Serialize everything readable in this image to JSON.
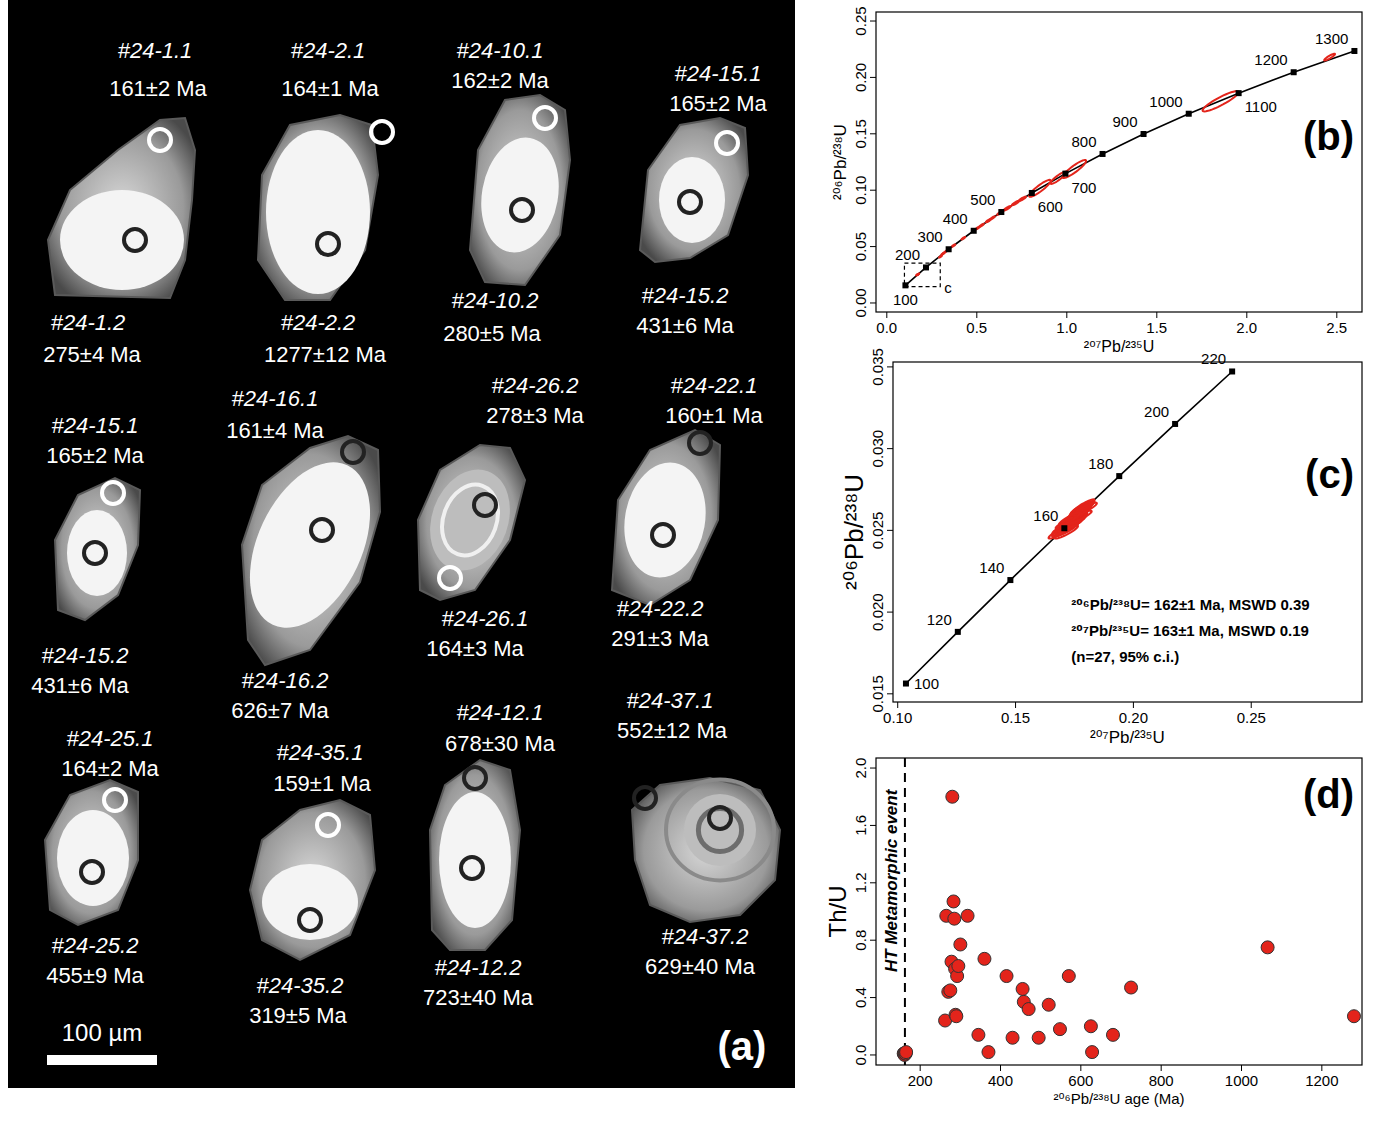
{
  "panel_a": {
    "label": "(a)",
    "scale_bar": "100 µm",
    "grains": [
      {
        "spots": [
          {
            "id": "#24-1.1",
            "age": "161±2 Ma",
            "color": "#ffffff"
          },
          {
            "id": "#24-1.2",
            "age": "275±4 Ma",
            "color": "#222222"
          }
        ]
      },
      {
        "spots": [
          {
            "id": "#24-2.1",
            "age": "164±1 Ma",
            "color": "#ffffff"
          },
          {
            "id": "#24-2.2",
            "age": "1277±12 Ma",
            "color": "#222222"
          }
        ]
      },
      {
        "spots": [
          {
            "id": "#24-10.1",
            "age": "162±2 Ma",
            "color": "#ffffff"
          },
          {
            "id": "#24-10.2",
            "age": "280±5 Ma",
            "color": "#222222"
          }
        ]
      },
      {
        "spots": [
          {
            "id": "#24-15.1",
            "age": "165±2 Ma",
            "color": "#ffffff"
          },
          {
            "id": "#24-15.2",
            "age": "431±6 Ma",
            "color": "#222222"
          }
        ]
      },
      {
        "spots": [
          {
            "id": "#24-15.1",
            "age": "165±2 Ma",
            "color": "#ffffff"
          },
          {
            "id": "#24-15.2",
            "age": "431±6 Ma",
            "color": "#222222"
          }
        ]
      },
      {
        "spots": [
          {
            "id": "#24-16.1",
            "age": "161±4 Ma",
            "color": "#222222"
          },
          {
            "id": "#24-16.2",
            "age": "626±7 Ma",
            "color": "#222222"
          }
        ]
      },
      {
        "spots": [
          {
            "id": "#24-26.2",
            "age": "278±3 Ma",
            "color": "#222222"
          },
          {
            "id": "#24-26.1",
            "age": "164±3 Ma",
            "color": "#ffffff"
          }
        ]
      },
      {
        "spots": [
          {
            "id": "#24-22.1",
            "age": "160±1 Ma",
            "color": "#222222"
          },
          {
            "id": "#24-22.2",
            "age": "291±3 Ma",
            "color": "#222222"
          }
        ]
      },
      {
        "spots": [
          {
            "id": "#24-25.1",
            "age": "164±2 Ma",
            "color": "#ffffff"
          },
          {
            "id": "#24-25.2",
            "age": "455±9 Ma",
            "color": "#222222"
          }
        ]
      },
      {
        "spots": [
          {
            "id": "#24-35.1",
            "age": "159±1 Ma",
            "color": "#ffffff"
          },
          {
            "id": "#24-35.2",
            "age": "319±5 Ma",
            "color": "#222222"
          }
        ]
      },
      {
        "spots": [
          {
            "id": "#24-12.1",
            "age": "678±30 Ma",
            "color": "#222222"
          },
          {
            "id": "#24-12.2",
            "age": "723±40 Ma",
            "color": "#222222"
          }
        ]
      },
      {
        "spots": [
          {
            "id": "#24-37.1",
            "age": "552±12 Ma",
            "color": "#222222"
          },
          {
            "id": "#24-37.2",
            "age": "629±40 Ma",
            "color": "#222222"
          }
        ]
      }
    ]
  },
  "chart_data": [
    {
      "type": "concordia",
      "label": "(b)",
      "x_label": "²⁰⁷Pb/²³⁵U",
      "y_label": "²⁰⁶Pb/²³⁸U",
      "xlim": [
        -0.06,
        2.64
      ],
      "ylim": [
        -0.008,
        0.258
      ],
      "xticks": [
        {
          "value": 0,
          "label": "0.0"
        },
        0.5,
        {
          "value": 1,
          "label": "1.0"
        },
        1.5,
        {
          "value": 2,
          "label": "2.0"
        },
        2.5
      ],
      "yticks": [
        {
          "value": 0,
          "label": "0.00"
        },
        0.05,
        {
          "value": 0.1,
          "label": "0.10"
        },
        0.15,
        {
          "value": 0.2,
          "label": "0.20"
        },
        0.25
      ],
      "concordia": {
        "ages": [
          100,
          200,
          300,
          400,
          500,
          600,
          700,
          800,
          900,
          1000,
          1100,
          1200,
          1300
        ],
        "x": [
          0.1035,
          0.2177,
          0.3436,
          0.4828,
          0.6363,
          0.8057,
          0.9925,
          1.1986,
          1.4264,
          1.6774,
          1.9546,
          2.2604,
          2.5978
        ],
        "y": [
          0.01563,
          0.03151,
          0.04764,
          0.06402,
          0.08065,
          0.09754,
          0.1147,
          0.13213,
          0.14982,
          0.1678,
          0.18606,
          0.2046,
          0.22343
        ]
      },
      "inset_box": {
        "xlim": [
          0.098,
          0.297
        ],
        "ylim": [
          0.0145,
          0.0353
        ],
        "label": "c"
      },
      "series": [
        {
          "color": "#e3241b",
          "x": [
            0.17,
            0.172,
            0.175,
            0.168,
            0.174,
            0.2982,
            0.311,
            0.3175,
            0.3306,
            0.3436,
            0.3704,
            0.4255,
            0.5048,
            0.5273,
            0.5653,
            0.5886,
            0.6282,
            0.6688,
            0.7155,
            0.7531,
            0.8507,
            0.9537,
            1.0422,
            1.8544,
            2.46
          ],
          "values": [
            0.025,
            0.0253,
            0.0257,
            0.0248,
            0.0255,
            0.04112,
            0.04357,
            0.04438,
            0.046,
            0.04764,
            0.05087,
            0.05741,
            0.06645,
            0.06893,
            0.07307,
            0.07557,
            0.07974,
            0.08393,
            0.08862,
            0.09233,
            0.10165,
            0.11106,
            0.1188,
            0.17886,
            0.218
          ],
          "x_err": [
            0.005,
            0.005,
            0.005,
            0.005,
            0.005,
            0.008,
            0.008,
            0.008,
            0.008,
            0.008,
            0.01,
            0.01,
            0.012,
            0.012,
            0.015,
            0.012,
            0.015,
            0.02,
            0.02,
            0.02,
            0.06,
            0.045,
            0.065,
            0.1,
            0.03
          ],
          "y_err": [
            0.0004,
            0.0004,
            0.0004,
            0.0004,
            0.0004,
            0.0009,
            0.0009,
            0.0009,
            0.0009,
            0.0009,
            0.0011,
            0.0011,
            0.0013,
            0.0013,
            0.0016,
            0.0013,
            0.0016,
            0.002,
            0.002,
            0.002,
            0.0075,
            0.0055,
            0.008,
            0.009,
            0.003
          ]
        }
      ]
    },
    {
      "type": "concordia",
      "label": "(c)",
      "x_label": "²⁰⁷Pb/²³⁵U",
      "y_label": "²⁰⁶Pb/²³⁸U",
      "xlim": [
        0.098,
        0.297
      ],
      "ylim": [
        0.0145,
        0.0353
      ],
      "xticks": [
        {
          "value": 0.1,
          "label": "0.10"
        },
        0.15,
        {
          "value": 0.2,
          "label": "0.20"
        },
        0.25
      ],
      "yticks": [
        0.015,
        {
          "value": 0.02,
          "label": "0.020"
        },
        0.025,
        {
          "value": 0.03,
          "label": "0.030"
        },
        0.035
      ],
      "concordia": {
        "ages": [
          100,
          120,
          140,
          160,
          180,
          200,
          220
        ],
        "x": [
          0.1035,
          0.1255,
          0.1478,
          0.1707,
          0.194,
          0.2177,
          0.2419
        ],
        "y": [
          0.01563,
          0.01879,
          0.02196,
          0.02513,
          0.02832,
          0.03151,
          0.03472
        ]
      },
      "annotations": [
        "²⁰⁶Pb/²³⁸U= 162±1 Ma, MSWD 0.39",
        "²⁰⁷Pb/²³⁵U= 163±1 Ma, MSWD 0.19",
        "(n=27, 95% c.i.)"
      ],
      "series": [
        {
          "color": "#e3241b",
          "x": [
            0.169,
            0.17,
            0.1705,
            0.1712,
            0.1718,
            0.1722,
            0.1725,
            0.173,
            0.1733,
            0.1738,
            0.174,
            0.1745,
            0.1748,
            0.175,
            0.1753,
            0.1757,
            0.176,
            0.1764,
            0.1768,
            0.1772,
            0.1775,
            0.178,
            0.1785,
            0.179,
            0.1795,
            0.1715,
            0.1728
          ],
          "values": [
            0.0249,
            0.0251,
            0.025,
            0.0252,
            0.0253,
            0.0251,
            0.0254,
            0.0255,
            0.0253,
            0.0256,
            0.0254,
            0.0257,
            0.0255,
            0.0258,
            0.0256,
            0.0259,
            0.0257,
            0.026,
            0.0258,
            0.0261,
            0.0262,
            0.0263,
            0.0264,
            0.0265,
            0.0263,
            0.0249,
            0.0257
          ],
          "x_err": [
            0.005,
            0.0045,
            0.005,
            0.0055,
            0.005,
            0.0045,
            0.005,
            0.006,
            0.005,
            0.0045,
            0.005,
            0.0055,
            0.005,
            0.0045,
            0.005,
            0.005,
            0.0045,
            0.005,
            0.0055,
            0.005,
            0.0045,
            0.005,
            0.005,
            0.0045,
            0.005,
            0.005,
            0.0045
          ],
          "y_err": [
            0.0004,
            0.0004,
            0.0004,
            0.0004,
            0.0004,
            0.0004,
            0.0004,
            0.0004,
            0.0004,
            0.0004,
            0.0004,
            0.0004,
            0.0004,
            0.0004,
            0.0004,
            0.0004,
            0.0004,
            0.0004,
            0.0004,
            0.0004,
            0.0004,
            0.0004,
            0.0004,
            0.0004,
            0.0004,
            0.0004,
            0.0004
          ]
        }
      ]
    },
    {
      "type": "scatter",
      "label": "(d)",
      "x_label": "²⁰⁶Pb/²³⁸U age (Ma)",
      "y_label": "Th/U",
      "xlim": [
        90,
        1300
      ],
      "ylim": [
        -0.07,
        2.07
      ],
      "xticks": [
        200,
        400,
        600,
        800,
        1000,
        1200
      ],
      "yticks": [
        {
          "value": 0,
          "label": "0.0"
        },
        0.4,
        0.8,
        1.2,
        1.6,
        {
          "value": 2,
          "label": "2.0"
        }
      ],
      "event": {
        "x": 162,
        "label": "HT Metamorphic event"
      },
      "series": [
        {
          "color": "#e3241b",
          "marker": "circle",
          "x": [
            159,
            160,
            161,
            162,
            164,
            165,
            262,
            265,
            270,
            275,
            278,
            280,
            283,
            285,
            287,
            288,
            290,
            292,
            295,
            300,
            318,
            345,
            360,
            370,
            415,
            430,
            455,
            458,
            470,
            495,
            520,
            548,
            570,
            625,
            628,
            680,
            725,
            1065,
            1280
          ],
          "values": [
            0.01,
            0.01,
            0.0,
            0.01,
            0.01,
            0.02,
            0.24,
            0.97,
            0.44,
            0.45,
            0.65,
            1.8,
            1.07,
            0.95,
            0.6,
            0.28,
            0.27,
            0.55,
            0.62,
            0.77,
            0.97,
            0.14,
            0.67,
            0.02,
            0.55,
            0.12,
            0.46,
            0.37,
            0.32,
            0.12,
            0.35,
            0.18,
            0.55,
            0.2,
            0.02,
            0.14,
            0.47,
            0.75,
            0.27
          ]
        }
      ]
    }
  ]
}
